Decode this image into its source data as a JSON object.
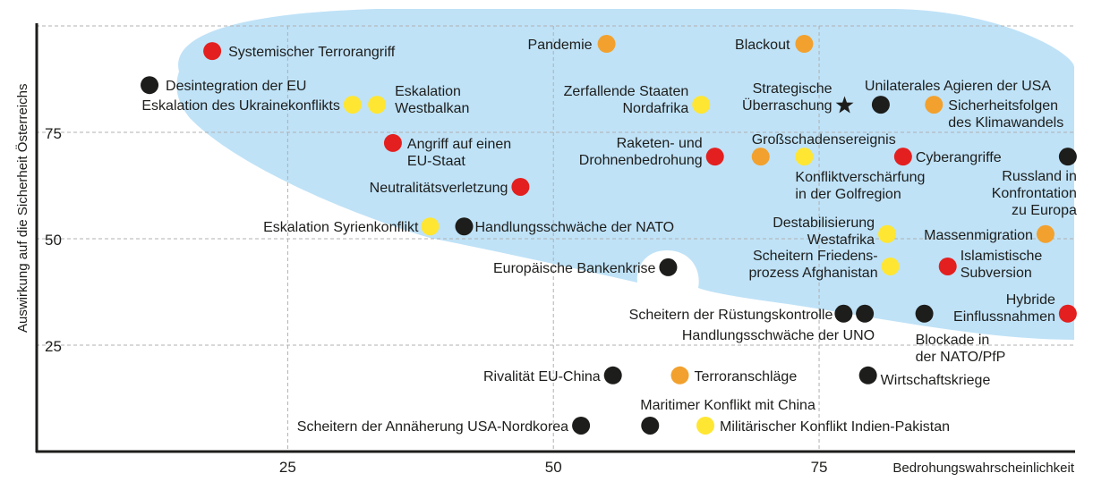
{
  "chart_data": {
    "type": "scatter",
    "xlabel": "Bedrohungswahrscheinlichkeit",
    "ylabel": "Auswirkung auf die Sicherheit Österreichs",
    "xlim": [
      1.3,
      99
    ],
    "ylim": [
      0,
      104
    ],
    "xticks": [
      "25",
      "50",
      "75"
    ],
    "yticks": [
      "25",
      "50",
      "75"
    ],
    "grid": true,
    "colors": {
      "red": "#e3201f",
      "black": "#1d1d1b",
      "yellow": "#ffe633",
      "orange": "#f2a12e",
      "region": "#bfe2f7"
    },
    "points": [
      {
        "label": [
          "Systemischer Terrorangriff"
        ],
        "x": 17.9,
        "y": 94.1,
        "color": "red"
      },
      {
        "label": [
          "Desintegration der EU"
        ],
        "x": 12.0,
        "y": 86.1,
        "color": "black"
      },
      {
        "label": [
          "Eskalation des Ukrainekonflikts"
        ],
        "x": 31.1,
        "y": 81.5,
        "color": "yellow"
      },
      {
        "label": [
          "Eskalation",
          "Westbalkan"
        ],
        "x": 33.4,
        "y": 81.5,
        "color": "yellow"
      },
      {
        "label": [
          "Angriff auf einen",
          "EU-Staat"
        ],
        "x": 34.9,
        "y": 72.5,
        "color": "red"
      },
      {
        "label": [
          "Neutralitätsverletzung"
        ],
        "x": 46.9,
        "y": 62.2,
        "color": "red"
      },
      {
        "label": [
          "Eskalation Syrienkonflikt"
        ],
        "x": 38.4,
        "y": 52.9,
        "color": "yellow"
      },
      {
        "label": [
          "Handlungsschwäche der NATO"
        ],
        "x": 41.6,
        "y": 52.9,
        "color": "black"
      },
      {
        "label": [
          "Europäische Bankenkrise"
        ],
        "x": 60.8,
        "y": 43.3,
        "color": "black"
      },
      {
        "label": [
          "Pandemie"
        ],
        "x": 55.0,
        "y": 95.8,
        "color": "orange"
      },
      {
        "label": [
          "Blackout"
        ],
        "x": 73.6,
        "y": 95.8,
        "color": "orange"
      },
      {
        "label": [
          "Zerfallende Staaten",
          "Nordafrika"
        ],
        "x": 63.9,
        "y": 81.5,
        "color": "yellow"
      },
      {
        "label": [
          "Strategische",
          "Überraschung"
        ],
        "x": 77.4,
        "y": 81.3,
        "color": "black",
        "marker": "star"
      },
      {
        "label": [
          "Unilaterales Agieren der USA"
        ],
        "x": 80.8,
        "y": 81.5,
        "color": "black"
      },
      {
        "label": [
          "Sicherheitsfolgen",
          "des Klimawandels"
        ],
        "x": 85.8,
        "y": 81.5,
        "color": "orange"
      },
      {
        "label": [
          "Raketen- und",
          "Drohnenbedrohung"
        ],
        "x": 65.2,
        "y": 69.3,
        "color": "red"
      },
      {
        "label": [
          "Großschadensereignis"
        ],
        "x": 69.5,
        "y": 69.3,
        "color": "orange"
      },
      {
        "label": [
          "Konfliktverschärfung",
          "in der Golfregion"
        ],
        "x": 73.6,
        "y": 69.3,
        "color": "yellow"
      },
      {
        "label": [
          "Cyberangriffe"
        ],
        "x": 82.9,
        "y": 69.3,
        "color": "red"
      },
      {
        "label": [
          "Russland in",
          "Konfrontation",
          "zu Europa"
        ],
        "x": 98.4,
        "y": 69.3,
        "color": "black"
      },
      {
        "label": [
          "Destabilisierung",
          "Westafrika"
        ],
        "x": 81.4,
        "y": 51.1,
        "color": "yellow"
      },
      {
        "label": [
          "Massenmigration"
        ],
        "x": 96.3,
        "y": 51.1,
        "color": "orange"
      },
      {
        "label": [
          "Scheitern Friedens-",
          "prozess Afghanistan"
        ],
        "x": 81.7,
        "y": 43.5,
        "color": "yellow"
      },
      {
        "label": [
          "Islamistische",
          "Subversion"
        ],
        "x": 87.1,
        "y": 43.5,
        "color": "red"
      },
      {
        "label": [
          "Scheitern der Rüstungskontrolle"
        ],
        "x": 77.3,
        "y": 32.4,
        "color": "black"
      },
      {
        "label": [
          "Handlungsschwäche der UNO"
        ],
        "x": 79.3,
        "y": 32.4,
        "color": "black"
      },
      {
        "label": [
          "Blockade in",
          "der NATO/PfP"
        ],
        "x": 84.9,
        "y": 32.4,
        "color": "black"
      },
      {
        "label": [
          "Hybride",
          "Einflussnahmen"
        ],
        "x": 98.4,
        "y": 32.4,
        "color": "red"
      },
      {
        "label": [
          "Rivalität EU-China"
        ],
        "x": 55.6,
        "y": 17.9,
        "color": "black"
      },
      {
        "label": [
          "Terroranschläge"
        ],
        "x": 61.9,
        "y": 17.9,
        "color": "orange"
      },
      {
        "label": [
          "Wirtschaftskriege"
        ],
        "x": 79.6,
        "y": 17.9,
        "color": "black"
      },
      {
        "label": [
          "Scheitern der Annäherung USA-Nordkorea"
        ],
        "x": 52.6,
        "y": 6.1,
        "color": "black"
      },
      {
        "label": [
          "Maritimer Konflikt mit China"
        ],
        "x": 59.1,
        "y": 6.1,
        "color": "black"
      },
      {
        "label": [
          "Militärischer Konflikt Indien-Pakistan"
        ],
        "x": 64.3,
        "y": 6.1,
        "color": "yellow"
      }
    ]
  }
}
